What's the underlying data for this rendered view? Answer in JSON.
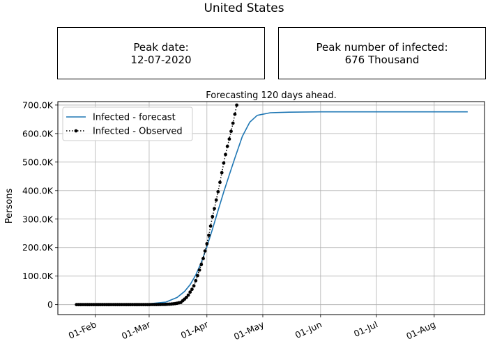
{
  "title": "United States",
  "peak_date_box": {
    "label": "Peak date:",
    "value": "12-07-2020"
  },
  "peak_infected_box": {
    "label": "Peak number of infected:",
    "value": "676 Thousand"
  },
  "chart_data": {
    "type": "line",
    "title": "Forecasting 120 days ahead.",
    "xlabel": "",
    "ylabel": "Persons",
    "x_tick_labels": [
      "01-Feb",
      "01-Mar",
      "01-Apr",
      "01-May",
      "01-Jun",
      "01-Jul",
      "01-Aug"
    ],
    "x_ticks": [
      "2020-02-01",
      "2020-03-01",
      "2020-04-01",
      "2020-05-01",
      "2020-06-01",
      "2020-07-01",
      "2020-08-01"
    ],
    "xlim": [
      "2020-01-12",
      "2020-08-28"
    ],
    "y_tick_labels": [
      "0",
      "100.0K",
      "200.0K",
      "300.0K",
      "400.0K",
      "500.0K",
      "600.0K",
      "700.0K"
    ],
    "y_ticks": [
      0,
      100000,
      200000,
      300000,
      400000,
      500000,
      600000,
      700000
    ],
    "ylim": [
      -35000,
      712000
    ],
    "grid": true,
    "legend": "upper-left",
    "series": [
      {
        "name": "Infected - forecast",
        "color": "#1f77b4",
        "style": "line",
        "x": [
          "2020-01-22",
          "2020-02-15",
          "2020-03-01",
          "2020-03-10",
          "2020-03-16",
          "2020-03-20",
          "2020-03-23",
          "2020-03-26",
          "2020-03-29",
          "2020-04-01",
          "2020-04-04",
          "2020-04-07",
          "2020-04-10",
          "2020-04-13",
          "2020-04-16",
          "2020-04-20",
          "2020-04-24",
          "2020-04-28",
          "2020-05-05",
          "2020-05-15",
          "2020-06-01",
          "2020-07-01",
          "2020-08-19"
        ],
        "y": [
          0,
          400,
          3000,
          9000,
          25000,
          46000,
          70000,
          104000,
          148000,
          203000,
          265000,
          330000,
          395000,
          455000,
          514000,
          590000,
          640000,
          664000,
          673000,
          675000,
          676000,
          676000,
          676000
        ]
      },
      {
        "name": "Infected - Observed",
        "color": "#000000",
        "style": "dotted-markers",
        "x": [
          "2020-01-22",
          "2020-01-23",
          "2020-01-24",
          "2020-01-25",
          "2020-01-26",
          "2020-01-27",
          "2020-01-28",
          "2020-01-29",
          "2020-01-30",
          "2020-01-31",
          "2020-02-01",
          "2020-02-02",
          "2020-02-03",
          "2020-02-04",
          "2020-02-05",
          "2020-02-06",
          "2020-02-07",
          "2020-02-08",
          "2020-02-09",
          "2020-02-10",
          "2020-02-11",
          "2020-02-12",
          "2020-02-13",
          "2020-02-14",
          "2020-02-15",
          "2020-02-16",
          "2020-02-17",
          "2020-02-18",
          "2020-02-19",
          "2020-02-20",
          "2020-02-21",
          "2020-02-22",
          "2020-02-23",
          "2020-02-24",
          "2020-02-25",
          "2020-02-26",
          "2020-02-27",
          "2020-02-28",
          "2020-02-29",
          "2020-03-01",
          "2020-03-02",
          "2020-03-03",
          "2020-03-04",
          "2020-03-05",
          "2020-03-06",
          "2020-03-07",
          "2020-03-08",
          "2020-03-09",
          "2020-03-10",
          "2020-03-11",
          "2020-03-12",
          "2020-03-13",
          "2020-03-14",
          "2020-03-15",
          "2020-03-16",
          "2020-03-17",
          "2020-03-18",
          "2020-03-19",
          "2020-03-20",
          "2020-03-21",
          "2020-03-22",
          "2020-03-23",
          "2020-03-24",
          "2020-03-25",
          "2020-03-26",
          "2020-03-27",
          "2020-03-28",
          "2020-03-29",
          "2020-03-30",
          "2020-03-31",
          "2020-04-01",
          "2020-04-02",
          "2020-04-03",
          "2020-04-04",
          "2020-04-05",
          "2020-04-06",
          "2020-04-07",
          "2020-04-08",
          "2020-04-09",
          "2020-04-10",
          "2020-04-11",
          "2020-04-12",
          "2020-04-13",
          "2020-04-14",
          "2020-04-15",
          "2020-04-16",
          "2020-04-17"
        ],
        "y": [
          0,
          0,
          0,
          0,
          0,
          0,
          0,
          0,
          0,
          0,
          0,
          0,
          0,
          0,
          0,
          0,
          0,
          0,
          0,
          0,
          0,
          0,
          0,
          0,
          0,
          0,
          0,
          0,
          0,
          0,
          0,
          0,
          0,
          0,
          0,
          0,
          0,
          0,
          0,
          0,
          100,
          120,
          150,
          220,
          320,
          430,
          550,
          600,
          960,
          1300,
          1700,
          2200,
          2800,
          3600,
          4700,
          6400,
          7800,
          13700,
          19100,
          25400,
          33300,
          43800,
          53700,
          65800,
          83800,
          101700,
          121500,
          140900,
          161800,
          188200,
          213200,
          243400,
          275600,
          308800,
          336800,
          366700,
          396200,
          429100,
          462800,
          496500,
          526400,
          555300,
          580600,
          607700,
          636300,
          667800,
          699700
        ]
      }
    ]
  }
}
